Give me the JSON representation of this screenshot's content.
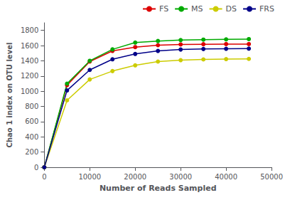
{
  "chart_data": {
    "type": "line",
    "xlabel": "Number of Reads Sampled",
    "ylabel": "Chao 1 index on OTU level",
    "x": [
      1,
      5000,
      10000,
      15000,
      20000,
      25000,
      30000,
      35000,
      40000,
      45000
    ],
    "series": [
      {
        "name": "FS",
        "color": "#DD0000",
        "values": [
          0,
          1080,
          1390,
          1530,
          1580,
          1605,
          1615,
          1618,
          1620,
          1620
        ]
      },
      {
        "name": "MS",
        "color": "#00AA00",
        "values": [
          0,
          1100,
          1400,
          1550,
          1640,
          1660,
          1672,
          1678,
          1682,
          1685
        ]
      },
      {
        "name": "DS",
        "color": "#CCCC00",
        "values": [
          0,
          880,
          1155,
          1265,
          1340,
          1390,
          1408,
          1418,
          1422,
          1425
        ]
      },
      {
        "name": "FRS",
        "color": "#000088",
        "values": [
          0,
          1010,
          1280,
          1420,
          1490,
          1530,
          1548,
          1555,
          1558,
          1560
        ]
      }
    ],
    "xlim": [
      0,
      50000
    ],
    "ylim": [
      0,
      1900
    ],
    "xticks": [
      0,
      10000,
      20000,
      30000,
      40000,
      50000
    ],
    "yticks": [
      0,
      200,
      400,
      600,
      800,
      1000,
      1200,
      1400,
      1600,
      1800
    ],
    "marker": "circle",
    "legend": "upper right",
    "grid": false
  }
}
